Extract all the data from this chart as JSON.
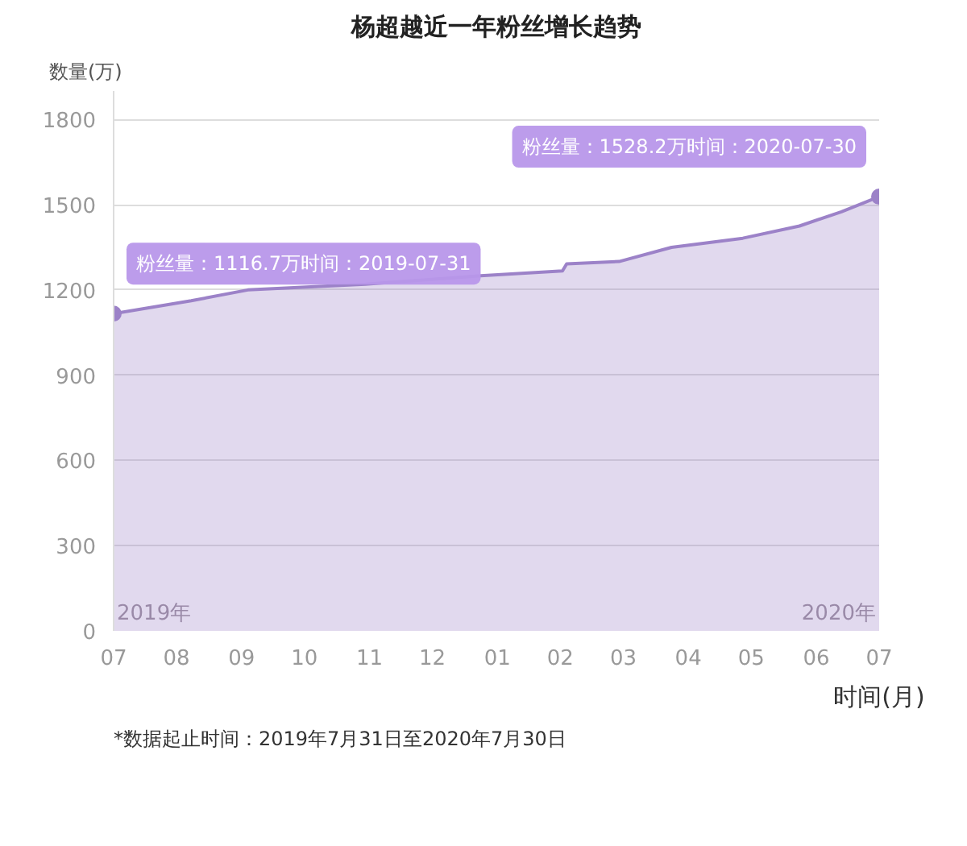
{
  "chart_data": {
    "type": "area",
    "title": "杨超越近一年粉丝增长趋势",
    "xlabel": "时间(月)",
    "ylabel": "数量(万)",
    "x": [
      "2019-07-31",
      "2019-09-06",
      "2019-10-03",
      "2019-11-28",
      "2020-01-22",
      "2020-03-01",
      "2020-03-03",
      "2020-03-28",
      "2020-04-22",
      "2020-05-26",
      "2020-06-22",
      "2020-07-12",
      "2020-07-30"
    ],
    "series": [
      {
        "color": "#9c82c8",
        "values": [
          1116.7,
          1162,
          1200,
          1220,
          1250,
          1267,
          1292,
          1300,
          1350,
          1382,
          1425,
          1475,
          1528.2
        ]
      }
    ],
    "ylim": [
      0,
      1900
    ],
    "yticks": [
      0,
      300,
      600,
      900,
      1200,
      1500,
      1800
    ],
    "xlim": [
      "2019-07-31",
      "2020-07-30"
    ],
    "xticks": [
      {
        "value": "2019-07-31",
        "label": "07"
      },
      {
        "value": "2019-08-30",
        "label": "08"
      },
      {
        "value": "2019-09-30",
        "label": "09"
      },
      {
        "value": "2019-10-30",
        "label": "10"
      },
      {
        "value": "2019-11-30",
        "label": "11"
      },
      {
        "value": "2019-12-30",
        "label": "12"
      },
      {
        "value": "2020-01-30",
        "label": "01"
      },
      {
        "value": "2020-02-29",
        "label": "02"
      },
      {
        "value": "2020-03-30",
        "label": "03"
      },
      {
        "value": "2020-04-30",
        "label": "04"
      },
      {
        "value": "2020-05-30",
        "label": "05"
      },
      {
        "value": "2020-06-30",
        "label": "06"
      },
      {
        "value": "2020-07-30",
        "label": "07"
      }
    ],
    "grid": "y",
    "marker": "none",
    "annotations": [
      {
        "text": "粉丝量：1116.7万时间：2019-07-31",
        "x": "2019-07-31",
        "y": 1116.7
      },
      {
        "text": "粉丝量：1528.2万时间：2020-07-30",
        "x": "2020-07-30",
        "y": 1528.2
      },
      {
        "text": "2019年",
        "x": "2019-07-31",
        "y": 0
      },
      {
        "text": "2020年",
        "x": "2020-07-30",
        "y": 0
      },
      "*数据起止时间：2019年7月31日至2020年7月30日"
    ]
  }
}
